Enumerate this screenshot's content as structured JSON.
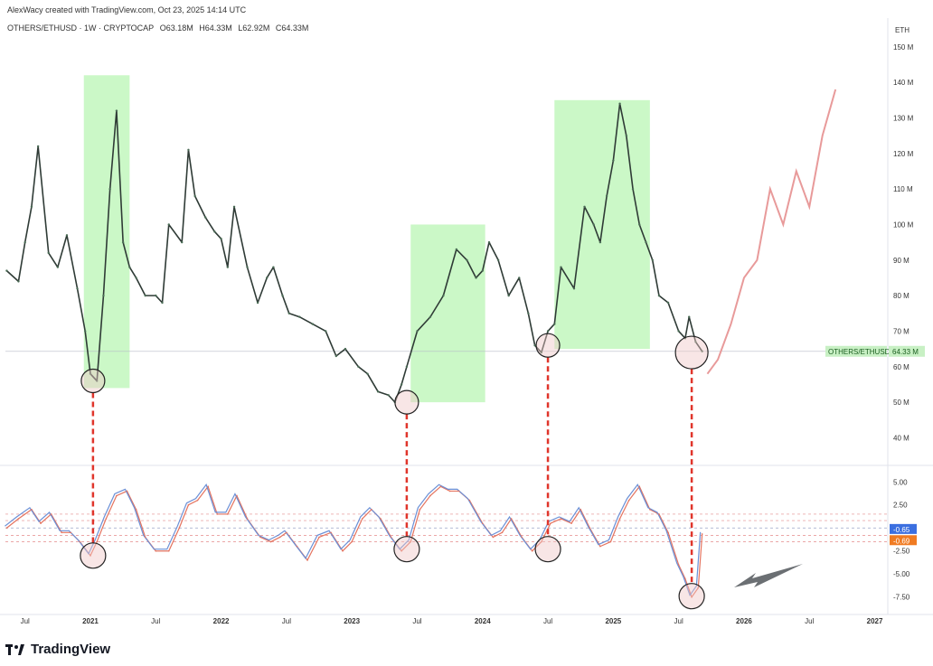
{
  "header": {
    "credit": "AlexWacy created with TradingView.com, Oct 23, 2025 14:14 UTC",
    "symbol": "OTHERS/ETHUSD · 1W · CRYPTOCAP",
    "open": "O63.18M",
    "high": "H64.33M",
    "low": "L62.92M",
    "close": "C64.33M"
  },
  "footer": {
    "brand": "TradingView"
  },
  "chart_data": [
    {
      "type": "line",
      "name": "price",
      "unit_label": "ETH",
      "y_ticks": [
        "40 M",
        "50 M",
        "60 M",
        "70 M",
        "80 M",
        "90 M",
        "100 M",
        "110 M",
        "120 M",
        "130 M",
        "140 M",
        "150 M"
      ],
      "y_tick_values": [
        40,
        50,
        60,
        70,
        80,
        90,
        100,
        110,
        120,
        130,
        140,
        150
      ],
      "ylim": [
        33,
        153
      ],
      "x_ticks": [
        "Jul",
        "2021",
        "Jul",
        "2022",
        "Jul",
        "2023",
        "Jul",
        "2024",
        "Jul",
        "2025",
        "Jul",
        "2026",
        "Jul",
        "2027"
      ],
      "x_tick_values": [
        2020.5,
        2021,
        2021.5,
        2022,
        2022.5,
        2023,
        2023.5,
        2024,
        2024.5,
        2025,
        2025.5,
        2026,
        2026.5,
        2027
      ],
      "xlim": [
        2020.35,
        2027.1
      ],
      "series_label": "OTHERS/ETHUSD",
      "last_value_label": "64.33 M",
      "last_value": 64.33,
      "x": [
        2020.36,
        2020.45,
        2020.5,
        2020.55,
        2020.6,
        2020.68,
        2020.75,
        2020.82,
        2020.9,
        2020.96,
        2021.0,
        2021.05,
        2021.1,
        2021.15,
        2021.2,
        2021.25,
        2021.3,
        2021.35,
        2021.42,
        2021.5,
        2021.55,
        2021.6,
        2021.7,
        2021.75,
        2021.8,
        2021.88,
        2021.95,
        2022.0,
        2022.05,
        2022.1,
        2022.2,
        2022.28,
        2022.35,
        2022.4,
        2022.47,
        2022.52,
        2022.6,
        2022.7,
        2022.8,
        2022.88,
        2022.95,
        2023.05,
        2023.12,
        2023.2,
        2023.28,
        2023.33,
        2023.38,
        2023.42,
        2023.5,
        2023.6,
        2023.7,
        2023.8,
        2023.88,
        2023.95,
        2024.0,
        2024.05,
        2024.12,
        2024.2,
        2024.28,
        2024.35,
        2024.4,
        2024.45,
        2024.5,
        2024.55,
        2024.6,
        2024.7,
        2024.78,
        2024.85,
        2024.9,
        2024.95,
        2025.0,
        2025.05,
        2025.1,
        2025.15,
        2025.2,
        2025.25,
        2025.3,
        2025.35,
        2025.42,
        2025.5,
        2025.55,
        2025.58,
        2025.63,
        2025.68
      ],
      "y": [
        87,
        84,
        95,
        105,
        122,
        92,
        88,
        97,
        82,
        70,
        58,
        56,
        80,
        110,
        132,
        95,
        88,
        85,
        80,
        80,
        78,
        100,
        95,
        121,
        108,
        102,
        98,
        96,
        88,
        105,
        88,
        78,
        85,
        88,
        80,
        75,
        74,
        72,
        70,
        63,
        65,
        60,
        58,
        53,
        52,
        50,
        55,
        60,
        70,
        74,
        80,
        93,
        90,
        85,
        87,
        95,
        90,
        80,
        85,
        75,
        66,
        64,
        70,
        72,
        88,
        82,
        105,
        100,
        95,
        108,
        118,
        134,
        125,
        110,
        100,
        95,
        90,
        80,
        78,
        70,
        68,
        74,
        67,
        64.33
      ]
    },
    {
      "type": "line",
      "name": "oscillator",
      "y_ticks": [
        "5.00",
        "2.50",
        "0.00",
        "-2.50",
        "-5.00",
        "-7.50"
      ],
      "y_tick_values": [
        5,
        2.5,
        0,
        -2.5,
        -5,
        -7.5
      ],
      "ylim": [
        -9,
        6.3
      ],
      "value_badges": [
        {
          "label": "-0.65",
          "value": -0.65,
          "color": "#3b6fe0"
        },
        {
          "label": "-0.69",
          "value": -0.69,
          "color": "#f07b22"
        }
      ],
      "x": [
        2020.36,
        2020.45,
        2020.55,
        2020.62,
        2020.7,
        2020.78,
        2020.85,
        2020.92,
        2021.0,
        2021.05,
        2021.12,
        2021.2,
        2021.28,
        2021.35,
        2021.42,
        2021.5,
        2021.6,
        2021.68,
        2021.75,
        2021.82,
        2021.9,
        2021.97,
        2022.05,
        2022.12,
        2022.2,
        2022.3,
        2022.38,
        2022.45,
        2022.5,
        2022.58,
        2022.66,
        2022.75,
        2022.84,
        2022.93,
        2023.0,
        2023.08,
        2023.15,
        2023.22,
        2023.3,
        2023.38,
        2023.45,
        2023.52,
        2023.6,
        2023.68,
        2023.75,
        2023.82,
        2023.9,
        2024.0,
        2024.08,
        2024.15,
        2024.22,
        2024.3,
        2024.38,
        2024.45,
        2024.52,
        2024.6,
        2024.68,
        2024.75,
        2024.82,
        2024.9,
        2024.98,
        2025.05,
        2025.12,
        2025.2,
        2025.28,
        2025.35,
        2025.42,
        2025.5,
        2025.55,
        2025.6,
        2025.65,
        2025.68
      ],
      "y": [
        0,
        1,
        2,
        0.5,
        1.5,
        -0.5,
        -0.5,
        -1.5,
        -3,
        -1.5,
        1,
        3.5,
        4,
        2,
        -1,
        -2.5,
        -2.5,
        0,
        2.5,
        3,
        4.5,
        1.5,
        1.5,
        3.5,
        1,
        -1,
        -1.5,
        -1,
        -0.5,
        -2,
        -3.5,
        -1,
        -0.5,
        -2.5,
        -1.5,
        1,
        2,
        1,
        -1,
        -2.5,
        -1.5,
        2,
        3.5,
        4.5,
        4,
        4,
        3,
        0.5,
        -1,
        -0.5,
        1,
        -1,
        -2.5,
        -1.5,
        0.5,
        1,
        0.5,
        2,
        0,
        -2,
        -1.5,
        1,
        3,
        4.5,
        2,
        1.5,
        -0.5,
        -4,
        -5.5,
        -7.5,
        -6.5,
        -0.65
      ]
    }
  ]
}
